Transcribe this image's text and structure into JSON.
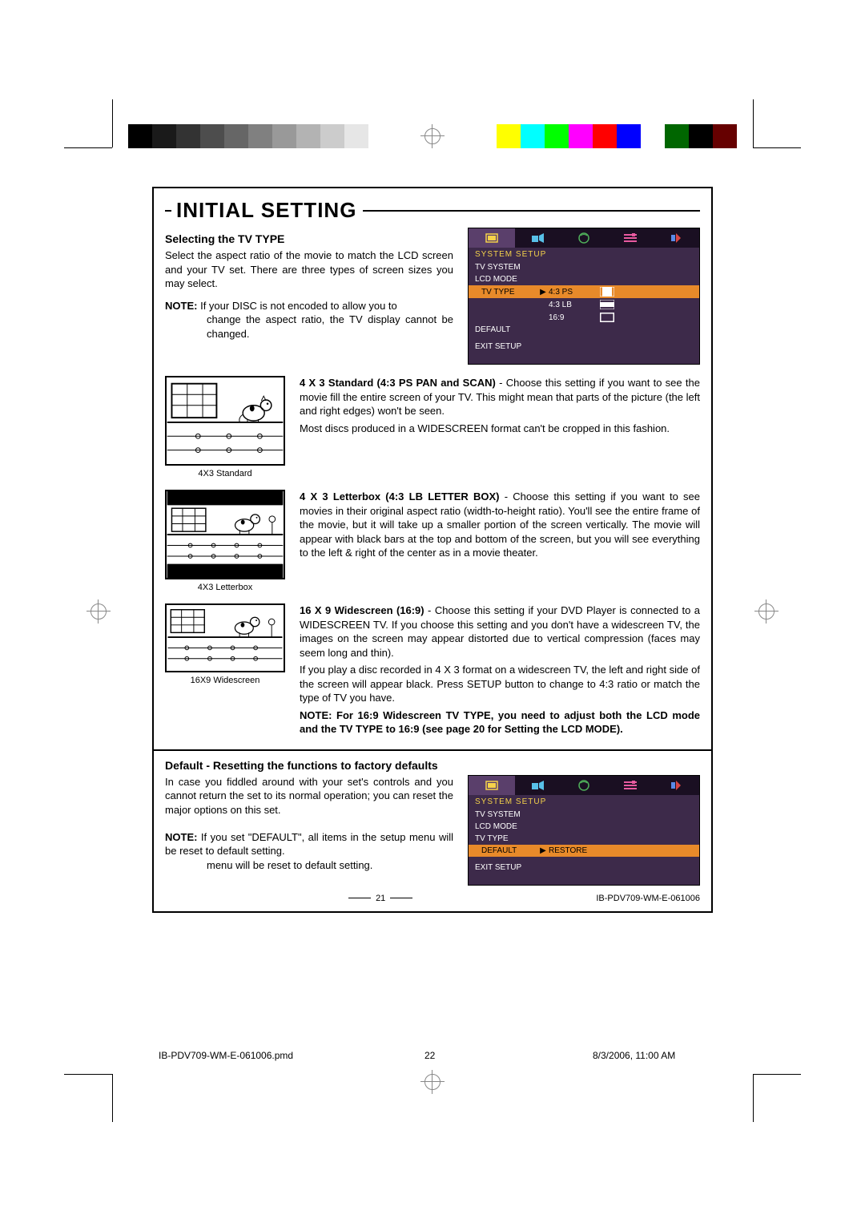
{
  "crop_bar_grayscale": [
    "#000000",
    "#1a1a1a",
    "#333333",
    "#4d4d4d",
    "#666666",
    "#808080",
    "#999999",
    "#b3b3b3",
    "#cccccc",
    "#e6e6e6",
    "#ffffff"
  ],
  "crop_bar_color": [
    "#ffffff",
    "#ffff00",
    "#00ffff",
    "#00ff00",
    "#ff00ff",
    "#ff0000",
    "#0000ff",
    "#ffffff",
    "#006600",
    "#000000",
    "#660000"
  ],
  "title": "INITIAL SETTING",
  "s1": {
    "heading": "Selecting the TV TYPE",
    "p1": "Select the aspect ratio of the movie to match the LCD screen and your TV set. There are three types of screen sizes you may select.",
    "note_label": "NOTE:",
    "note_body": "If your DISC is not encoded to allow you to change the aspect ratio, the TV display cannot be changed."
  },
  "osd1": {
    "header": "SYSTEM SETUP",
    "items": [
      "TV SYSTEM",
      "LCD MODE",
      "TV TYPE",
      "DEFAULT"
    ],
    "selected_index": 2,
    "options": [
      "4:3 PS",
      "4:3 LB",
      "16:9"
    ],
    "exit": "EXIT SETUP",
    "bg": "#3d2a4a",
    "hl": "#e88a2a",
    "head_color": "#f5d24a"
  },
  "thumbs": [
    {
      "caption": "4X3 Standard",
      "ratio": "4x3",
      "mode": "ps"
    },
    {
      "caption": "4X3 Letterbox",
      "ratio": "4x3",
      "mode": "lb"
    },
    {
      "caption": "16X9 Widescreen",
      "ratio": "16x9",
      "mode": "ws"
    }
  ],
  "desc": {
    "a_title": "4 X 3 Standard (4:3 PS PAN and SCAN)",
    "a_body": " - Choose this setting if you want to see the movie fill the entire screen of your TV. This might mean that parts of the picture (the left and right edges) won't be seen.",
    "a_body2": "Most discs produced in a WIDESCREEN format can't be cropped in this fashion.",
    "b_title": "4 X 3 Letterbox (4:3 LB LETTER BOX)",
    "b_body": " - Choose this setting if you want to see movies in their original aspect ratio (width-to-height ratio). You'll see the entire frame of the movie, but it will take up a smaller portion of the screen vertically. The movie will appear with black bars at the top and bottom of the screen, but you will see everything to the left & right of the center as in a movie theater.",
    "c_title": "16 X 9 Widescreen (16:9)",
    "c_body": " - Choose this setting if your DVD Player is connected to a WIDESCREEN TV. If you choose this setting and you don't have a widescreen TV, the images on the screen may appear distorted due to vertical compression (faces may seem long and thin).",
    "c_body2": "If you play a disc recorded in 4 X 3 format on a widescreen TV, the left and right side of the screen will appear black. Press SETUP button to change to 4:3 ratio or match the type of TV you have.",
    "c_note": "NOTE: For 16:9 Widescreen TV TYPE, you need to adjust both the LCD mode and the TV TYPE to 16:9 (see page 20 for Setting the LCD MODE)."
  },
  "s2": {
    "heading": "Default - Resetting the functions to factory defaults",
    "p1": "In case you fiddled around with your set's controls and you cannot return the set to its normal operation; you can reset the major options on this set.",
    "note_label": "NOTE:",
    "note_body": " If you set \"DEFAULT\", all items in the setup menu will be reset to default setting."
  },
  "osd2": {
    "header": "SYSTEM SETUP",
    "items": [
      "TV SYSTEM",
      "LCD MODE",
      "TV TYPE",
      "DEFAULT"
    ],
    "selected_index": 3,
    "option": "RESTORE",
    "exit": "EXIT SETUP"
  },
  "footer": {
    "page_num": "21",
    "doc_id": "IB-PDV709-WM-E-061006"
  },
  "meta": {
    "file": "IB-PDV709-WM-E-061006.pmd",
    "sheet": "22",
    "datetime": "8/3/2006, 11:00 AM"
  }
}
